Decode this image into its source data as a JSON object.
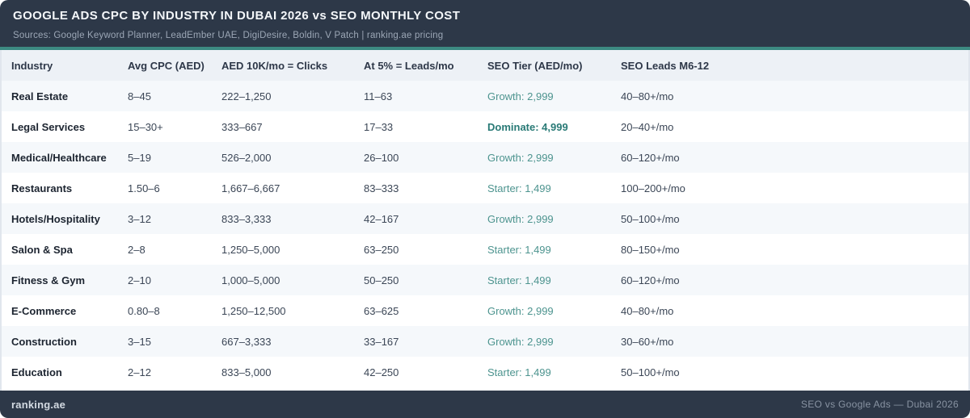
{
  "header": {
    "title": "GOOGLE ADS CPC BY INDUSTRY IN DUBAI 2026 vs SEO MONTHLY COST",
    "subtitle": "Sources: Google Keyword Planner, LeadEmber UAE, DigiDesire, Boldin, V Patch | ranking.ae pricing"
  },
  "footer": {
    "brand": "ranking.ae",
    "caption": "SEO vs Google Ads — Dubai 2026"
  },
  "colors": {
    "header_bg": "#2d3848",
    "accent_teal": "#3c8a82",
    "tier_text": "#4d948f",
    "tier_text_strong": "#297a76",
    "row_alt_bg": "#f5f8fb",
    "table_header_bg": "#edf1f6"
  },
  "chart_data": {
    "type": "table",
    "title": "GOOGLE ADS CPC BY INDUSTRY IN DUBAI 2026 vs SEO MONTHLY COST",
    "columns": [
      "Industry",
      "Avg CPC (AED)",
      "AED 10K/mo = Clicks",
      "At 5% = Leads/mo",
      "SEO Tier (AED/mo)",
      "SEO Leads M6-12"
    ],
    "rows": [
      [
        "Real Estate",
        "8–45",
        "222–1,250",
        "11–63",
        "Growth: 2,999",
        "40–80+/mo"
      ],
      [
        "Legal Services",
        "15–30+",
        "333–667",
        "17–33",
        "Dominate: 4,999",
        "20–40+/mo"
      ],
      [
        "Medical/Healthcare",
        "5–19",
        "526–2,000",
        "26–100",
        "Growth: 2,999",
        "60–120+/mo"
      ],
      [
        "Restaurants",
        "1.50–6",
        "1,667–6,667",
        "83–333",
        "Starter: 1,499",
        "100–200+/mo"
      ],
      [
        "Hotels/Hospitality",
        "3–12",
        "833–3,333",
        "42–167",
        "Growth: 2,999",
        "50–100+/mo"
      ],
      [
        "Salon & Spa",
        "2–8",
        "1,250–5,000",
        "63–250",
        "Starter: 1,499",
        "80–150+/mo"
      ],
      [
        "Fitness & Gym",
        "2–10",
        "1,000–5,000",
        "50–250",
        "Starter: 1,499",
        "60–120+/mo"
      ],
      [
        "E-Commerce",
        "0.80–8",
        "1,250–12,500",
        "63–625",
        "Growth: 2,999",
        "40–80+/mo"
      ],
      [
        "Construction",
        "3–15",
        "667–3,333",
        "33–167",
        "Growth: 2,999",
        "30–60+/mo"
      ],
      [
        "Education",
        "2–12",
        "833–5,000",
        "42–250",
        "Starter: 1,499",
        "50–100+/mo"
      ]
    ],
    "notes": "SEO tier values are monthly AED prices; 'Dominate' tier shown emphasized in bold teal"
  }
}
